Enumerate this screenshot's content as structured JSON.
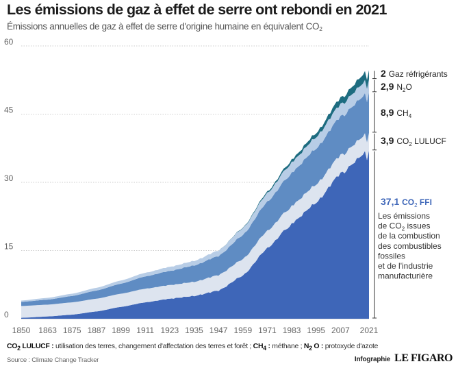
{
  "title": "Les émissions de gaz à effet de serre ont rebondi en 2021",
  "subtitle_main": "Émissions annuelles de gaz à effet de serre d'origine humaine en équivalent CO",
  "subtitle_sub": "2",
  "footnote": {
    "t1": "CO",
    "t1sub": "2",
    "t1b": " LULUCF :",
    "d1": " utilisation des terres, changement d'affectation des terres et forêt ; ",
    "t2": "CH",
    "t2sub": "4",
    "t2b": " :",
    "d2": " méthane ; ",
    "t3": "N",
    "t3sub": "2",
    "t3b": "O :",
    "d3": " protoxyde d'azote"
  },
  "source": "Source : Climate Change Tracker",
  "credit_label": "Infographie",
  "credit_logo": "LE FIGARO",
  "colors": {
    "ffi": "#3e66b8",
    "lulucf": "#dde4ef",
    "ch4": "#5f8cc3",
    "n2o": "#b8cde6",
    "fgas": "#1d6c80",
    "axis_text": "#666666",
    "grid": "#cccccc"
  },
  "chart_data": {
    "type": "area",
    "stacked": true,
    "x": [
      1850,
      1863,
      1875,
      1887,
      1899,
      1911,
      1923,
      1935,
      1947,
      1959,
      1971,
      1983,
      1995,
      2007,
      2021
    ],
    "x_ticks": [
      "1850",
      "1863",
      "1875",
      "1887",
      "1899",
      "1911",
      "1923",
      "1935",
      "1947",
      "1959",
      "1971",
      "1983",
      "1995",
      "2007",
      "2021"
    ],
    "y_ticks": [
      "0",
      "15",
      "30",
      "45",
      "60"
    ],
    "ylim": [
      0,
      60
    ],
    "grid": true,
    "series": [
      {
        "name": "CO2 FFI",
        "color": "#3e66b8",
        "values": [
          0.2,
          0.5,
          0.9,
          1.6,
          2.6,
          3.6,
          4.4,
          5.0,
          6.2,
          9.5,
          15.5,
          21.0,
          25.5,
          32.0,
          37.1
        ]
      },
      {
        "name": "CO2 LULUCF",
        "color": "#dde4ef",
        "values": [
          2.6,
          2.6,
          2.7,
          2.8,
          2.9,
          3.0,
          3.0,
          3.1,
          3.4,
          3.6,
          3.8,
          3.9,
          4.0,
          4.0,
          3.9
        ]
      },
      {
        "name": "CH4",
        "color": "#5f8cc3",
        "values": [
          0.9,
          1.1,
          1.4,
          1.8,
          2.2,
          2.7,
          3.1,
          3.6,
          4.2,
          5.3,
          6.4,
          7.3,
          7.9,
          8.5,
          8.9
        ]
      },
      {
        "name": "N2O",
        "color": "#b8cde6",
        "values": [
          0.3,
          0.4,
          0.5,
          0.6,
          0.7,
          0.8,
          0.9,
          1.0,
          1.2,
          1.5,
          1.9,
          2.3,
          2.5,
          2.7,
          2.9
        ]
      },
      {
        "name": "Gaz réfrigérants",
        "color": "#1d6c80",
        "values": [
          0,
          0,
          0,
          0,
          0,
          0,
          0,
          0,
          0,
          0.1,
          0.3,
          0.6,
          0.9,
          1.4,
          2
        ]
      }
    ],
    "labels": [
      {
        "value": "2",
        "text": "Gaz réfrigérants",
        "sub": ""
      },
      {
        "value": "2,9",
        "text": "N",
        "sub": "2",
        "text2": "O"
      },
      {
        "value": "8,9",
        "text": "CH",
        "sub": "4",
        "text2": ""
      },
      {
        "value": "3,9",
        "text": "CO",
        "sub": "2",
        "text2": " LULUCF"
      },
      {
        "value": "37,1",
        "text": "CO",
        "sub": "2",
        "text2": " FFI"
      }
    ],
    "ffi_note": [
      "Les émissions",
      "de CO",
      "2",
      " issues",
      "de la combustion",
      "des combustibles",
      "fossiles",
      "et de l'industrie",
      "manufacturière"
    ]
  }
}
